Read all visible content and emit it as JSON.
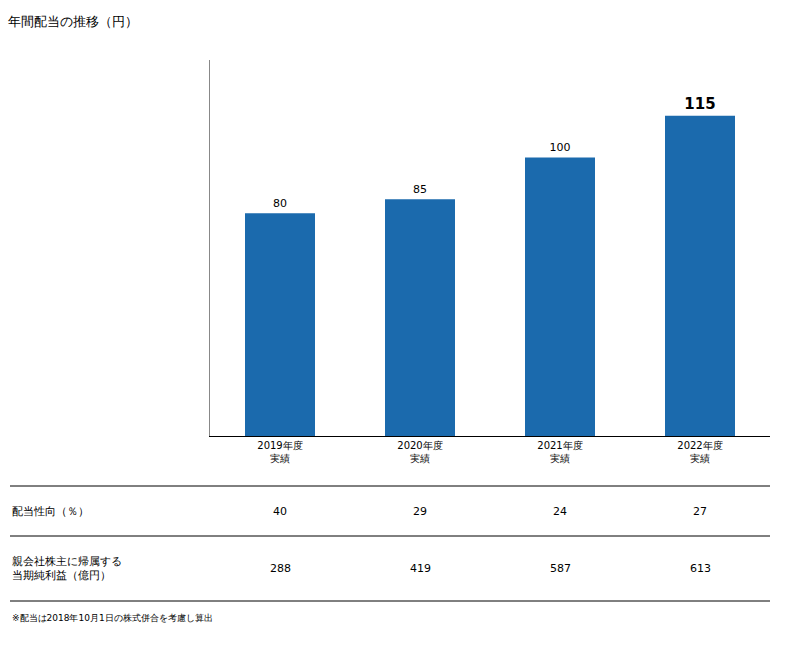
{
  "chart_data": {
    "type": "bar",
    "title": "年間配当の推移（円）",
    "categories": [
      "2019年度\n実績",
      "2020年度\n実績",
      "2021年度\n実績",
      "2022年度\n実績"
    ],
    "values": [
      80,
      85,
      100,
      115
    ],
    "data_labels": true,
    "color": "#1B6AAD",
    "ylim": [
      0,
      135
    ],
    "yticks": [],
    "grid": false,
    "tick_labels": "x",
    "table": [
      {
        "label": "配当性向（％）",
        "values": [
          "40",
          "29",
          "24",
          "27"
        ]
      },
      {
        "label": "親会社株主に帰属する\n当期純利益（億円）",
        "values": [
          "288",
          "419",
          "587",
          "613"
        ]
      }
    ],
    "footnote": "※配当は2018年10月1日の株式併合を考慮し算出"
  }
}
